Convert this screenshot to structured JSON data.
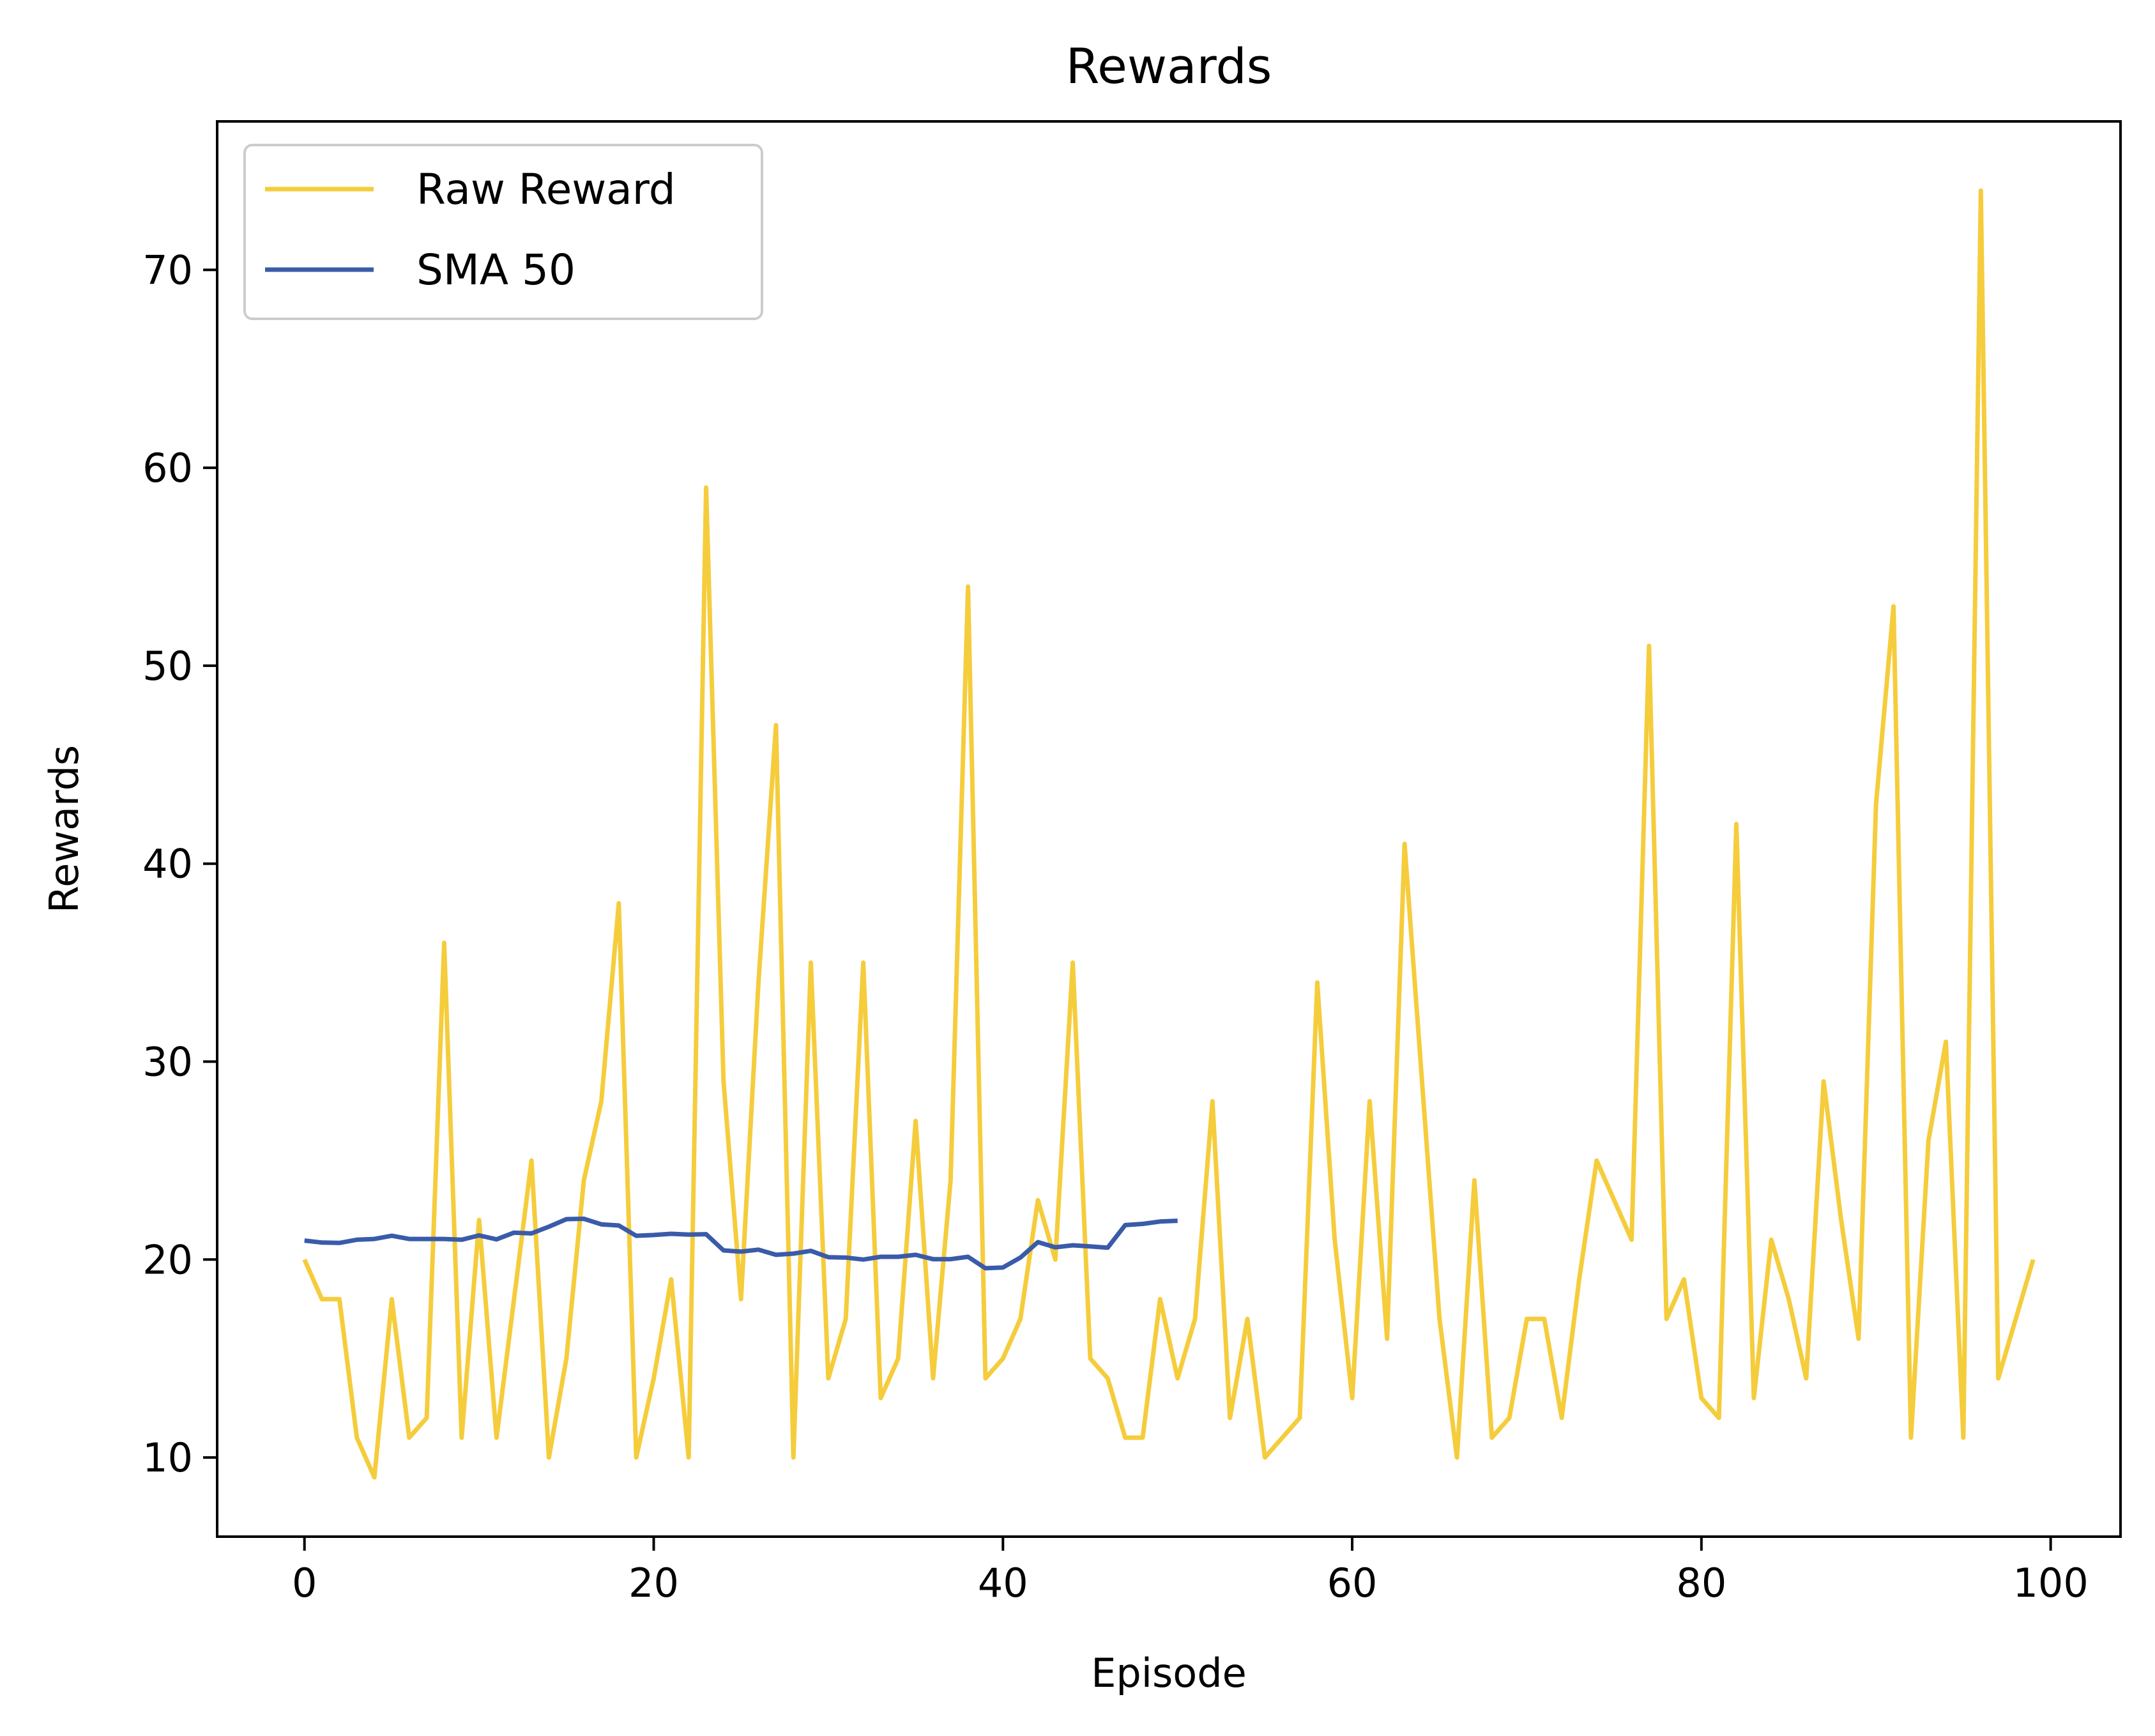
{
  "chart_data": {
    "type": "line",
    "title": "Rewards",
    "xlabel": "Episode",
    "ylabel": "Rewards",
    "xlim": [
      -5,
      104
    ],
    "ylim": [
      6,
      77.5
    ],
    "x_ticks": [
      0,
      20,
      40,
      60,
      80,
      100
    ],
    "x_tick_labels": [
      "0",
      "20",
      "40",
      "60",
      "80",
      "100"
    ],
    "y_ticks": [
      10,
      20,
      30,
      40,
      50,
      60,
      70
    ],
    "y_tick_labels": [
      "10",
      "20",
      "30",
      "40",
      "50",
      "60",
      "70"
    ],
    "grid": false,
    "legend": {
      "placement": "top-left",
      "entries": [
        "Raw Reward",
        "SMA 50"
      ]
    },
    "series": [
      {
        "name": "Raw Reward",
        "color": "#f5cc3b",
        "x": [
          0,
          1,
          2,
          3,
          4,
          5,
          6,
          7,
          8,
          9,
          10,
          11,
          12,
          13,
          14,
          15,
          16,
          17,
          18,
          19,
          20,
          21,
          22,
          23,
          24,
          25,
          26,
          27,
          28,
          29,
          30,
          31,
          32,
          33,
          34,
          35,
          36,
          37,
          38,
          39,
          40,
          41,
          42,
          43,
          44,
          45,
          46,
          47,
          48,
          49,
          50,
          51,
          52,
          53,
          54,
          55,
          56,
          57,
          58,
          59,
          60,
          61,
          62,
          63,
          64,
          65,
          66,
          67,
          68,
          69,
          70,
          71,
          72,
          73,
          74,
          75,
          76,
          77,
          78,
          79,
          80,
          81,
          82,
          83,
          84,
          85,
          86,
          87,
          88,
          89,
          90,
          91,
          92,
          93,
          94,
          95,
          96,
          97,
          98,
          99
        ],
        "values": [
          20,
          18,
          18,
          11,
          9,
          18,
          11,
          12,
          36,
          11,
          22,
          11,
          18,
          25,
          10,
          15,
          24,
          28,
          38,
          10,
          14,
          19,
          10,
          59,
          29,
          18,
          34,
          47,
          10,
          35,
          14,
          17,
          35,
          13,
          15,
          27,
          14,
          24,
          54,
          14,
          15,
          17,
          23,
          20,
          35,
          15,
          14,
          11,
          11,
          18,
          14,
          17,
          28,
          12,
          17,
          10,
          11,
          12,
          34,
          21,
          13,
          28,
          16,
          41,
          29,
          17,
          10,
          24,
          11,
          12,
          17,
          17,
          12,
          19,
          25,
          23,
          21,
          51,
          17,
          19,
          13,
          12,
          42,
          13,
          21,
          18,
          14,
          29,
          22,
          16,
          43,
          53,
          11,
          26,
          31,
          11,
          74,
          14,
          17,
          20
        ]
      },
      {
        "name": "SMA 50",
        "color": "#3a5ba9",
        "x": [
          0,
          1,
          2,
          3,
          4,
          5,
          6,
          7,
          8,
          9,
          10,
          11,
          12,
          13,
          14,
          15,
          16,
          17,
          18,
          19,
          20,
          21,
          22,
          23,
          24,
          25,
          26,
          27,
          28,
          29,
          30,
          31,
          32,
          33,
          34,
          35,
          36,
          37,
          38,
          39,
          40,
          41,
          42,
          43,
          44,
          45,
          46,
          47,
          48,
          49,
          50
        ],
        "values": [
          20.96,
          20.86,
          20.84,
          21.0,
          21.04,
          21.2,
          21.04,
          21.04,
          21.04,
          21.0,
          21.22,
          21.02,
          21.36,
          21.32,
          21.66,
          22.04,
          22.06,
          21.78,
          21.72,
          21.2,
          21.24,
          21.3,
          21.26,
          21.28,
          20.46,
          20.4,
          20.5,
          20.24,
          20.3,
          20.44,
          20.12,
          20.1,
          20.0,
          20.14,
          20.14,
          20.24,
          20.02,
          20.02,
          20.14,
          19.56,
          19.6,
          20.1,
          20.88,
          20.62,
          20.72,
          20.66,
          20.6,
          21.74,
          21.8,
          21.92,
          21.96
        ]
      }
    ]
  }
}
